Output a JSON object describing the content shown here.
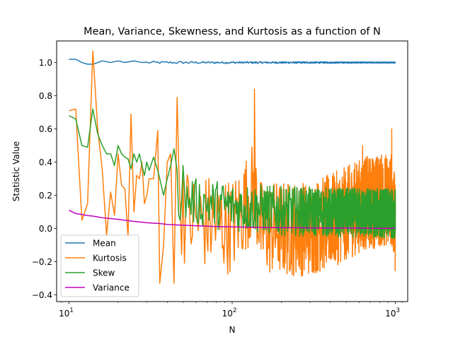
{
  "chart_data": {
    "type": "line",
    "title": "Mean, Variance, Skewness, and Kurtosis as a function of N",
    "xlabel": "N",
    "ylabel": "Statistic Value",
    "xscale": "log",
    "xlim": [
      8.4,
      1190
    ],
    "ylim": [
      -0.44,
      1.13
    ],
    "grid": false,
    "legend_position": "lower-left",
    "x_tick_labels": [
      {
        "base": "10",
        "exp": "1",
        "value": 10
      },
      {
        "base": "10",
        "exp": "2",
        "value": 100
      },
      {
        "base": "10",
        "exp": "3",
        "value": 1000
      }
    ],
    "y_ticks": [
      -0.4,
      -0.2,
      0.0,
      0.2,
      0.4,
      0.6,
      0.8,
      1.0
    ],
    "y_tick_labels": [
      "−0.4",
      "−0.2",
      "0.0",
      "0.2",
      "0.4",
      "0.6",
      "0.8",
      "1.0"
    ],
    "series": [
      {
        "name": "Mean",
        "color": "#1f77b4",
        "points": [
          [
            10,
            1.02
          ],
          [
            11,
            1.02
          ],
          [
            12,
            1.0
          ],
          [
            13,
            0.99
          ],
          [
            14,
            0.99
          ],
          [
            15,
            1.0
          ],
          [
            16,
            1.01
          ],
          [
            18,
            1.0
          ],
          [
            20,
            1.01
          ],
          [
            22,
            1.0
          ],
          [
            25,
            1.01
          ],
          [
            28,
            1.0
          ],
          [
            30,
            1.0
          ],
          [
            33,
            1.0
          ],
          [
            36,
            1.0
          ],
          [
            40,
            1.0
          ],
          [
            45,
            1.0
          ],
          [
            50,
            1.0
          ],
          [
            60,
            1.0
          ],
          [
            80,
            1.0
          ],
          [
            100,
            1.0
          ],
          [
            150,
            1.0
          ],
          [
            200,
            1.0
          ],
          [
            300,
            1.0
          ],
          [
            500,
            1.0
          ],
          [
            700,
            1.0
          ],
          [
            1000,
            1.0
          ]
        ],
        "noise": {
          "from": 30,
          "to": 1000,
          "center": 1.0,
          "amp_start": 0.008,
          "amp_end": 0.003
        }
      },
      {
        "name": "Kurtosis",
        "color": "#ff7f0e",
        "points": [
          [
            10,
            0.71
          ],
          [
            11,
            0.72
          ],
          [
            12,
            0.05
          ],
          [
            13,
            0.15
          ],
          [
            14,
            1.07
          ],
          [
            15,
            0.6
          ],
          [
            16,
            0.35
          ],
          [
            17,
            -0.04
          ],
          [
            18,
            0.22
          ],
          [
            19,
            0.08
          ],
          [
            20,
            0.45
          ],
          [
            21,
            0.26
          ],
          [
            22,
            0.24
          ],
          [
            23,
            -0.05
          ],
          [
            24,
            0.69
          ],
          [
            25,
            0.1
          ],
          [
            26,
            0.32
          ],
          [
            27,
            0.3
          ],
          [
            28,
            0.4
          ],
          [
            29,
            0.15
          ],
          [
            30,
            0.2
          ],
          [
            31,
            0.3
          ],
          [
            33,
            0.3
          ],
          [
            35,
            0.59
          ],
          [
            36,
            -0.33
          ],
          [
            38,
            -0.1
          ],
          [
            40,
            0.4
          ],
          [
            42,
            0.45
          ],
          [
            44,
            -0.33
          ],
          [
            46,
            0.79
          ],
          [
            50,
            0.3
          ],
          [
            60,
            0.15
          ],
          [
            100,
            0.05
          ],
          [
            137,
            0.84
          ],
          [
            150,
            0.0
          ],
          [
            300,
            0.0
          ],
          [
            630,
            0.5
          ],
          [
            950,
            0.6
          ],
          [
            1000,
            0.0
          ]
        ],
        "noise": {
          "from": 46,
          "to": 1000,
          "center": 0.0,
          "amp_start": 0.3,
          "amp_end": 0.28
        }
      },
      {
        "name": "Skew",
        "color": "#2ca02c",
        "points": [
          [
            10,
            0.68
          ],
          [
            11,
            0.66
          ],
          [
            12,
            0.5
          ],
          [
            13,
            0.49
          ],
          [
            14,
            0.72
          ],
          [
            15,
            0.57
          ],
          [
            16,
            0.5
          ],
          [
            17,
            0.45
          ],
          [
            18,
            0.45
          ],
          [
            19,
            0.38
          ],
          [
            20,
            0.5
          ],
          [
            21,
            0.45
          ],
          [
            22,
            0.43
          ],
          [
            23,
            0.42
          ],
          [
            24,
            0.36
          ],
          [
            25,
            0.45
          ],
          [
            26,
            0.4
          ],
          [
            27,
            0.45
          ],
          [
            28,
            0.38
          ],
          [
            29,
            0.32
          ],
          [
            30,
            0.4
          ],
          [
            31,
            0.35
          ],
          [
            33,
            0.43
          ],
          [
            35,
            0.35
          ],
          [
            36,
            0.3
          ],
          [
            38,
            0.2
          ],
          [
            40,
            0.3
          ],
          [
            42,
            0.38
          ],
          [
            44,
            0.48
          ],
          [
            46,
            0.35
          ],
          [
            50,
            0.38
          ],
          [
            60,
            0.3
          ],
          [
            100,
            0.2
          ],
          [
            200,
            0.12
          ],
          [
            400,
            0.09
          ],
          [
            1000,
            0.07
          ]
        ],
        "noise": {
          "from": 46,
          "to": 1000,
          "center": 0.1,
          "amp_start": 0.15,
          "amp_end": 0.15
        }
      },
      {
        "name": "Variance",
        "color": "#bf00bf",
        "points": [
          [
            10,
            0.11
          ],
          [
            11,
            0.09
          ],
          [
            12,
            0.085
          ],
          [
            13,
            0.078
          ],
          [
            14,
            0.075
          ],
          [
            15,
            0.07
          ],
          [
            16,
            0.065
          ],
          [
            18,
            0.06
          ],
          [
            20,
            0.055
          ],
          [
            22,
            0.05
          ],
          [
            25,
            0.043
          ],
          [
            28,
            0.038
          ],
          [
            30,
            0.035
          ],
          [
            33,
            0.032
          ],
          [
            36,
            0.03
          ],
          [
            40,
            0.025
          ],
          [
            45,
            0.022
          ],
          [
            50,
            0.02
          ],
          [
            60,
            0.017
          ],
          [
            70,
            0.014
          ],
          [
            80,
            0.012
          ],
          [
            100,
            0.01
          ],
          [
            130,
            0.008
          ],
          [
            160,
            0.006
          ],
          [
            200,
            0.005
          ],
          [
            300,
            0.004
          ],
          [
            500,
            0.003
          ],
          [
            700,
            0.002
          ],
          [
            1000,
            0.0015
          ]
        ]
      }
    ]
  }
}
